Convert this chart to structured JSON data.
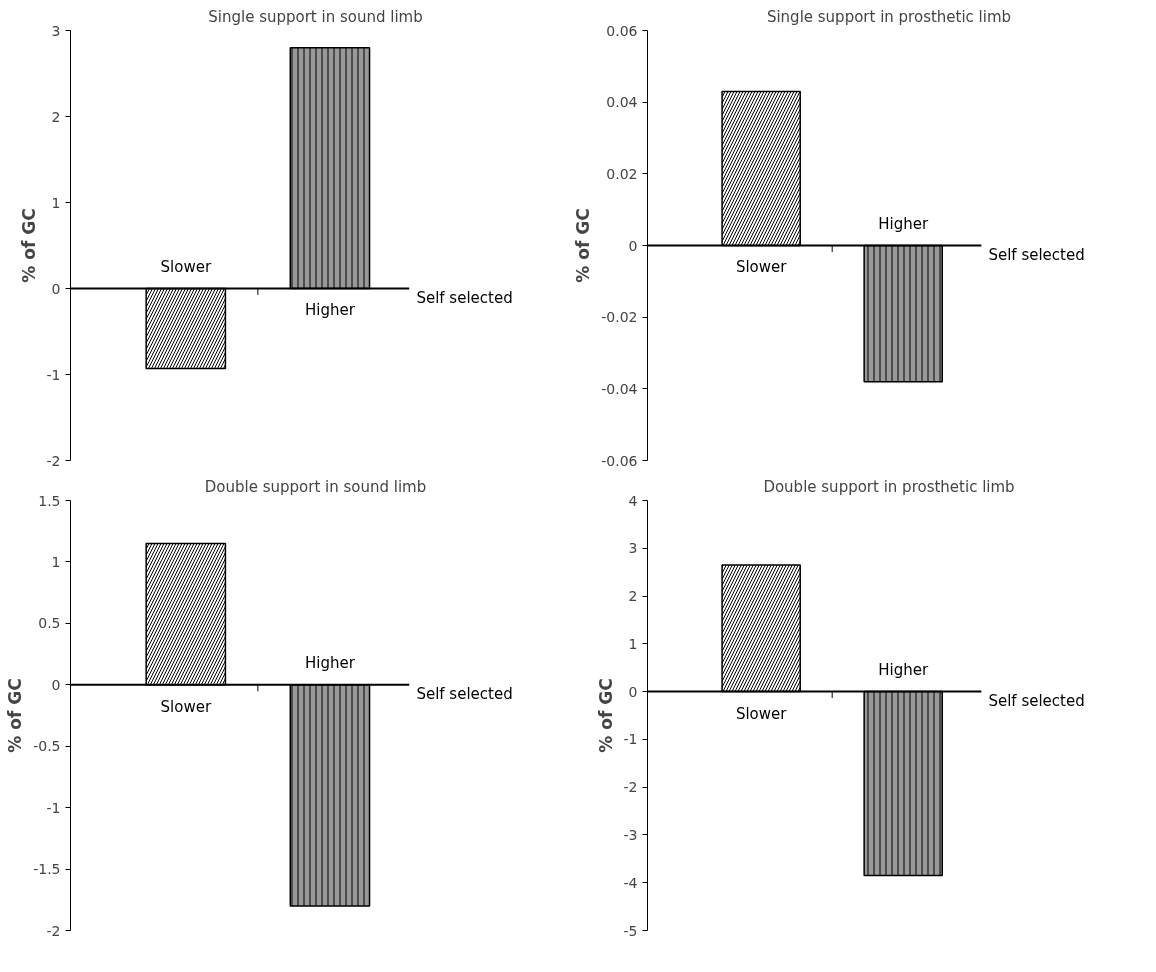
{
  "chart_data": [
    {
      "type": "bar",
      "title": "Single support in sound limb",
      "xlabel": "Self selected",
      "ylabel": "% of GC",
      "categories": [
        "Slower",
        "Higher"
      ],
      "values": [
        -0.93,
        2.8
      ],
      "colors": [
        "#ffffff",
        "#999999"
      ],
      "ylim": [
        -2,
        3
      ],
      "yticks": [
        -2,
        -1,
        0,
        1,
        2,
        3
      ]
    },
    {
      "type": "bar",
      "title": "Single support in prosthetic limb",
      "xlabel": "Self selected",
      "ylabel": "% of GC",
      "categories": [
        "Slower",
        "Higher"
      ],
      "values": [
        0.043,
        -0.038
      ],
      "colors": [
        "#ffffff",
        "#999999"
      ],
      "ylim": [
        -0.06,
        0.06
      ],
      "yticks": [
        -0.06,
        -0.04,
        -0.02,
        0,
        0.02,
        0.04,
        0.06
      ]
    },
    {
      "type": "bar",
      "title": "Double support in sound limb",
      "xlabel": "Self selected",
      "ylabel": "% of GC",
      "categories": [
        "Slower",
        "Higher"
      ],
      "values": [
        1.15,
        -1.8
      ],
      "colors": [
        "#ffffff",
        "#999999"
      ],
      "ylim": [
        -2,
        1.5
      ],
      "yticks": [
        -2,
        -1.5,
        -1,
        -0.5,
        0,
        0.5,
        1,
        1.5
      ]
    },
    {
      "type": "bar",
      "title": "Double support in prosthetic limb",
      "xlabel": "Self selected",
      "ylabel": "% of GC",
      "categories": [
        "Slower",
        "Higher"
      ],
      "values": [
        2.65,
        -3.85
      ],
      "colors": [
        "#ffffff",
        "#999999"
      ],
      "ylim": [
        -5,
        4
      ],
      "yticks": [
        -5,
        -4,
        -3,
        -2,
        -1,
        0,
        1,
        2,
        3,
        4
      ]
    }
  ]
}
